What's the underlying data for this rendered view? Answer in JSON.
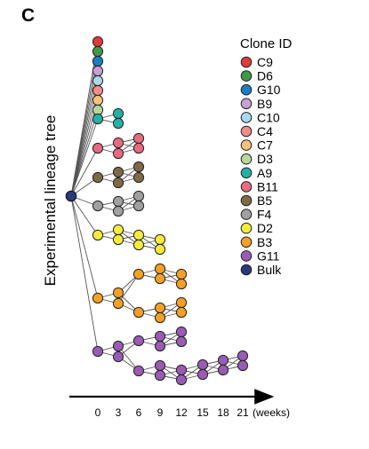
{
  "panel_label": "C",
  "y_axis_label": "Experimental lineage tree",
  "legend": {
    "title": "Clone ID",
    "clones": [
      {
        "id": "C9",
        "color": "#e03a3a"
      },
      {
        "id": "D6",
        "color": "#3f9a46"
      },
      {
        "id": "G10",
        "color": "#1f7ec2"
      },
      {
        "id": "B9",
        "color": "#c8a0d4"
      },
      {
        "id": "C10",
        "color": "#a8d8ea"
      },
      {
        "id": "C4",
        "color": "#f28b8b"
      },
      {
        "id": "C7",
        "color": "#f5c27a"
      },
      {
        "id": "D3",
        "color": "#b5d99a"
      },
      {
        "id": "A9",
        "color": "#26b0a5"
      },
      {
        "id": "B11",
        "color": "#e86a7e"
      },
      {
        "id": "B5",
        "color": "#7e6a45"
      },
      {
        "id": "F4",
        "color": "#a0a0a0"
      },
      {
        "id": "D2",
        "color": "#f2ec3c"
      },
      {
        "id": "B3",
        "color": "#f4a024"
      },
      {
        "id": "G11",
        "color": "#9a5ab5"
      },
      {
        "id": "Bulk",
        "color": "#283a7a"
      }
    ]
  },
  "time_axis": {
    "ticks": [
      "0",
      "3",
      "6",
      "9",
      "12",
      "15",
      "18",
      "21"
    ],
    "unit": "(weeks)"
  }
}
